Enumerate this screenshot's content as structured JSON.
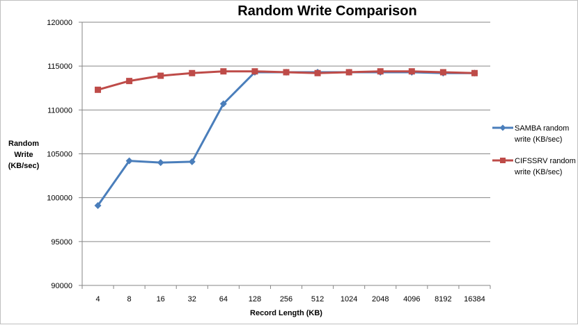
{
  "chart_data": {
    "type": "line",
    "title": "Random Write Comparison",
    "xlabel": "Record Length (KB)",
    "ylabel": "Random Write (KB/sec)",
    "categories": [
      "4",
      "8",
      "16",
      "32",
      "64",
      "128",
      "256",
      "512",
      "1024",
      "2048",
      "4096",
      "8192",
      "16384"
    ],
    "ylim": [
      90000,
      120000
    ],
    "yticks": [
      90000,
      95000,
      100000,
      105000,
      110000,
      115000,
      120000
    ],
    "grid": true,
    "legend": "right",
    "series": [
      {
        "name": "SAMBA random write (KB/sec)",
        "color": "#4a7ebb",
        "marker": "diamond",
        "values": [
          99100,
          104200,
          104000,
          104100,
          110700,
          114300,
          114300,
          114300,
          114300,
          114300,
          114300,
          114200,
          114200
        ]
      },
      {
        "name": "CIFSSRV random write (KB/sec)",
        "color": "#be4b48",
        "marker": "square",
        "values": [
          112300,
          113300,
          113900,
          114200,
          114400,
          114400,
          114300,
          114200,
          114300,
          114400,
          114400,
          114300,
          114200
        ]
      }
    ]
  }
}
